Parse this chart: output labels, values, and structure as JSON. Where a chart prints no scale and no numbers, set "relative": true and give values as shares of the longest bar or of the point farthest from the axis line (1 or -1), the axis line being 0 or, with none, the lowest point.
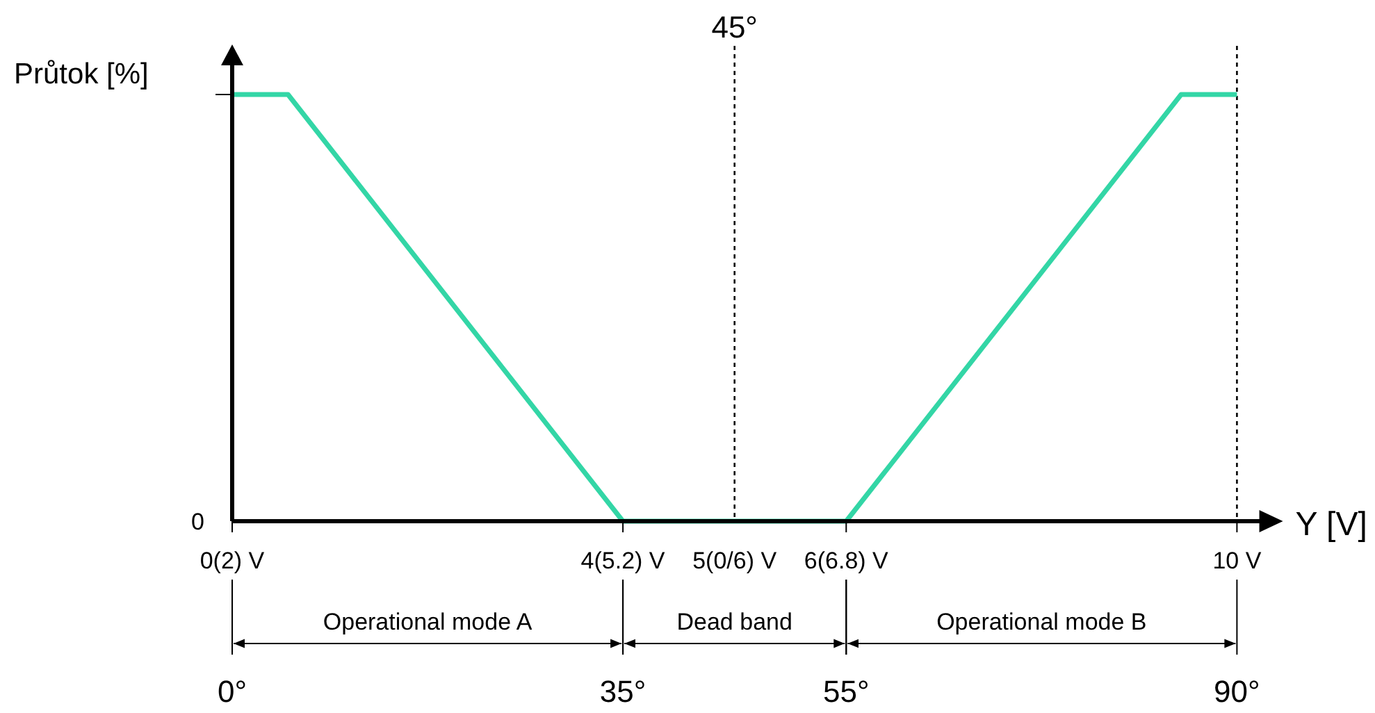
{
  "chart_data": {
    "type": "line",
    "relative": true,
    "xlabel": "Y [V]",
    "ylabel": "Průtok [%]",
    "x": [
      0,
      5,
      35,
      55,
      85,
      90
    ],
    "series": [
      {
        "color": "#33d6a6",
        "values": [
          1,
          1,
          0,
          0,
          1,
          1
        ]
      }
    ],
    "xlim": [
      0,
      93
    ],
    "xticks": [
      {
        "value": 0,
        "label": "0°"
      },
      {
        "value": 35,
        "label": "35°"
      },
      {
        "value": 55,
        "label": "55°"
      },
      {
        "value": 90,
        "label": "90°"
      }
    ],
    "ref_lines": [
      {
        "axis": "x",
        "value": 45,
        "label": "45°",
        "line_style": "dotted"
      },
      {
        "axis": "x",
        "value": 90,
        "line_style": "dotted"
      }
    ],
    "annotations": [
      "Operational mode A",
      "Dead band",
      "Operational mode B",
      "0",
      {
        "text": "0(2) V",
        "x": 0
      },
      {
        "text": "4(5.2) V",
        "x": 35
      },
      {
        "text": "5(0/6) V",
        "x": 45,
        "y": 0
      },
      {
        "text": "6(6.8) V",
        "x": 55
      },
      {
        "text": "10 V",
        "x": 90
      }
    ],
    "grid": false,
    "marker": "none",
    "line_style": "solid"
  }
}
